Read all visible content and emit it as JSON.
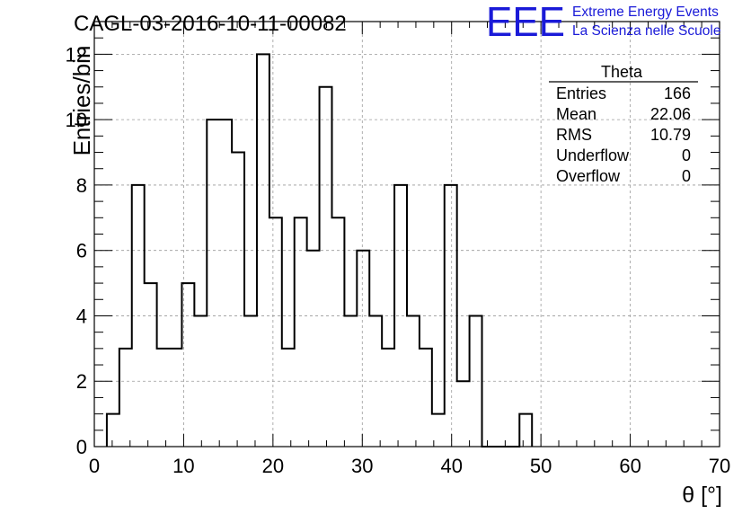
{
  "chart_data": {
    "type": "bar",
    "title": "CAGL-03-2016-10-11-00082",
    "xlabel": "θ [°]",
    "ylabel": "Entries/bin",
    "xlim": [
      0,
      70
    ],
    "ylim": [
      0,
      13
    ],
    "grid": true,
    "bin_width": 1.4,
    "bin_edges_start": 1.4,
    "x_ticks": [
      "0",
      "10",
      "20",
      "30",
      "40",
      "50",
      "60",
      "70"
    ],
    "y_ticks": [
      "0",
      "2",
      "4",
      "6",
      "8",
      "10",
      "12"
    ],
    "values": [
      1,
      3,
      8,
      5,
      3,
      3,
      5,
      4,
      10,
      10,
      9,
      4,
      12,
      7,
      3,
      7,
      6,
      11,
      7,
      4,
      6,
      4,
      3,
      8,
      4,
      3,
      1,
      8,
      2,
      4,
      0,
      0,
      0,
      1
    ],
    "stats_box": {
      "title": "Theta",
      "rows": [
        {
          "label": "Entries",
          "value": "166"
        },
        {
          "label": "Mean",
          "value": "22.06"
        },
        {
          "label": "RMS",
          "value": "10.79"
        },
        {
          "label": "Underflow",
          "value": "0"
        },
        {
          "label": "Overflow",
          "value": "0"
        }
      ]
    }
  },
  "logo": {
    "mark": "EEE",
    "line1": "Extreme Energy Events",
    "line2": "La Scienza nelle Scuole",
    "color": "#1a1ad8"
  },
  "colors": {
    "histogram": "#000000",
    "grid": "#9a9a9a",
    "logo": "#1a1ad8"
  }
}
